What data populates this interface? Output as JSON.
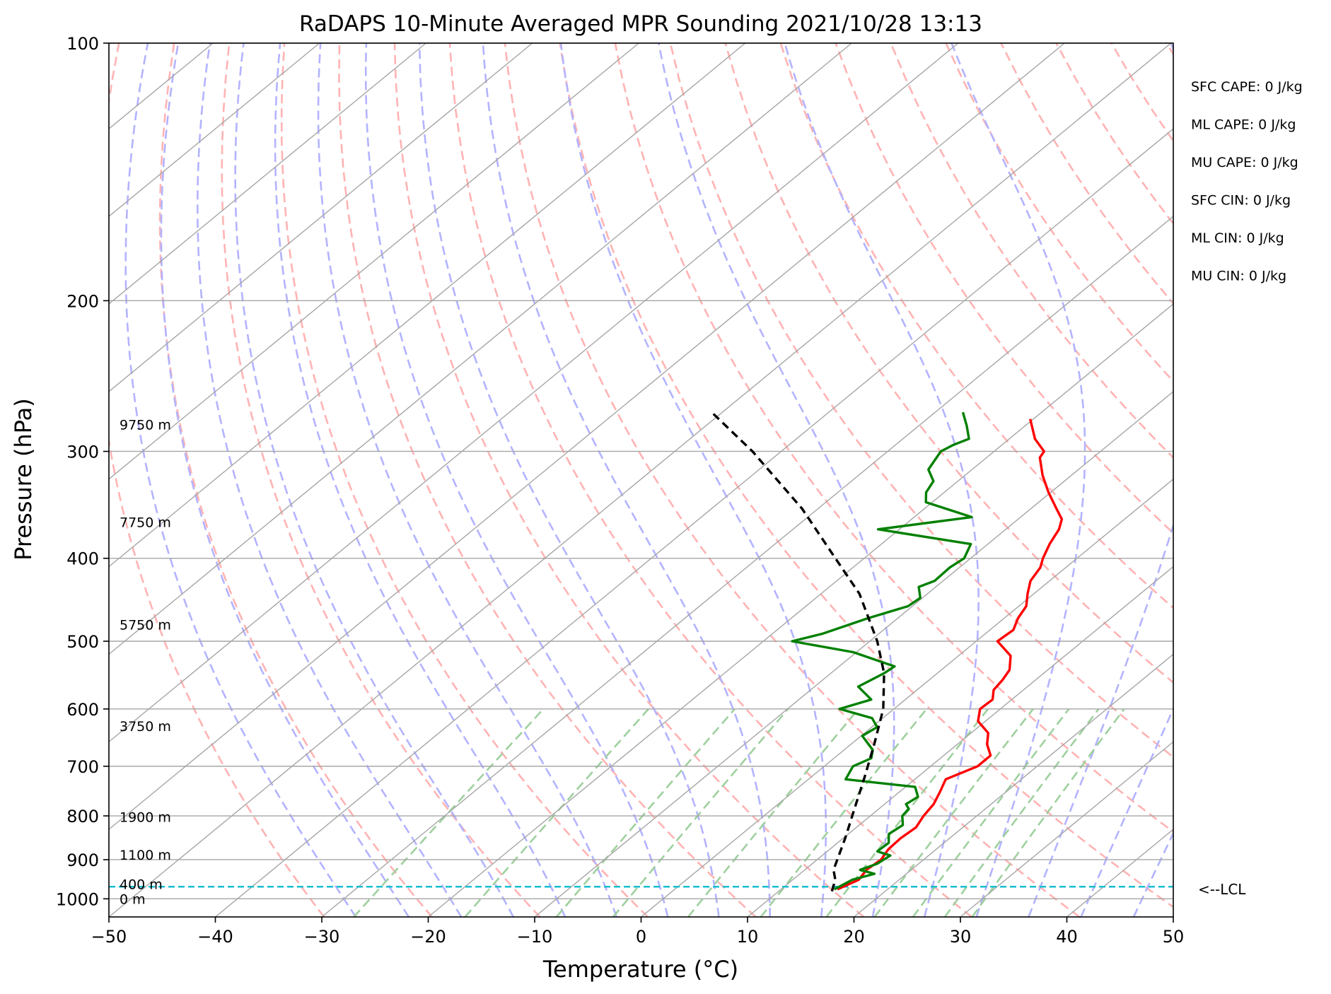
{
  "colors": {
    "temperature": "#ff0000",
    "dewpoint": "#008000",
    "parcel": "#000000",
    "dry_adiabat": "#ffb3b3",
    "moist_adiabat": "#b3b3ff",
    "mixing_ratio": "#9ed09e",
    "isotherm": "#a6a6a6",
    "isobar": "#a6a6a6",
    "lcl_line": "#17becf"
  },
  "chart_data": {
    "type": "line",
    "title": "RaDAPS 10-Minute Averaged MPR Sounding 2021/10/28 13:13",
    "xlabel": "Temperature (°C)",
    "ylabel": "Pressure (hPa)",
    "xlim": [
      -50,
      50
    ],
    "ylim": [
      1050,
      100
    ],
    "y_scale": "log",
    "x_ticks": [
      "−50",
      "−40",
      "−30",
      "−20",
      "−10",
      "0",
      "10",
      "20",
      "30",
      "40",
      "50"
    ],
    "y_ticks": [
      "100",
      "200",
      "300",
      "400",
      "500",
      "600",
      "700",
      "800",
      "900",
      "1000"
    ],
    "grid": true,
    "series": [
      {
        "key": "temperature",
        "points": [
          [
            15.3,
            975
          ],
          [
            16.2,
            950
          ],
          [
            15.8,
            925
          ],
          [
            16.0,
            900
          ],
          [
            15.5,
            875
          ],
          [
            15.4,
            850
          ],
          [
            15.6,
            825
          ],
          [
            15.0,
            800
          ],
          [
            14.6,
            775
          ],
          [
            13.8,
            750
          ],
          [
            12.9,
            725
          ],
          [
            14.4,
            700
          ],
          [
            14.4,
            680
          ],
          [
            12.8,
            660
          ],
          [
            11.6,
            640
          ],
          [
            9.3,
            620
          ],
          [
            8.1,
            600
          ],
          [
            8.2,
            585
          ],
          [
            7.2,
            570
          ],
          [
            6.9,
            555
          ],
          [
            6.4,
            540
          ],
          [
            4.9,
            520
          ],
          [
            2.0,
            500
          ],
          [
            2.2,
            485
          ],
          [
            1.3,
            470
          ],
          [
            0.7,
            455
          ],
          [
            -0.6,
            440
          ],
          [
            -1.8,
            425
          ],
          [
            -2.4,
            410
          ],
          [
            -3.2,
            400
          ],
          [
            -4.2,
            385
          ],
          [
            -5.0,
            370
          ],
          [
            -5.9,
            360
          ],
          [
            -7.6,
            350
          ],
          [
            -10.2,
            335
          ],
          [
            -12.7,
            320
          ],
          [
            -15.0,
            305
          ],
          [
            -15.3,
            300
          ],
          [
            -17.6,
            290
          ],
          [
            -20.3,
            275
          ]
        ]
      },
      {
        "key": "dewpoint",
        "points": [
          [
            15.0,
            975
          ],
          [
            15.6,
            950
          ],
          [
            17.0,
            935
          ],
          [
            15.2,
            925
          ],
          [
            16.1,
            910
          ],
          [
            16.4,
            890
          ],
          [
            14.7,
            880
          ],
          [
            14.8,
            860
          ],
          [
            13.8,
            840
          ],
          [
            14.1,
            820
          ],
          [
            13.0,
            800
          ],
          [
            12.8,
            785
          ],
          [
            12.0,
            775
          ],
          [
            12.3,
            760
          ],
          [
            10.9,
            740
          ],
          [
            3.5,
            725
          ],
          [
            2.7,
            700
          ],
          [
            3.5,
            685
          ],
          [
            2.7,
            670
          ],
          [
            0.1,
            645
          ],
          [
            0.5,
            630
          ],
          [
            -1.0,
            615
          ],
          [
            -5.1,
            600
          ],
          [
            -3.2,
            585
          ],
          [
            -5.9,
            565
          ],
          [
            -5.0,
            545
          ],
          [
            -4.8,
            535
          ],
          [
            -10.3,
            515
          ],
          [
            -17.3,
            500
          ],
          [
            -15.3,
            490
          ],
          [
            -12.8,
            470
          ],
          [
            -10.4,
            455
          ],
          [
            -10.2,
            445
          ],
          [
            -11.6,
            432
          ],
          [
            -10.8,
            425
          ],
          [
            -10.9,
            410
          ],
          [
            -10.6,
            400
          ],
          [
            -11.6,
            385
          ],
          [
            -22.0,
            370
          ],
          [
            -14.6,
            358
          ],
          [
            -20.6,
            344
          ],
          [
            -21.7,
            335
          ],
          [
            -22.3,
            325
          ],
          [
            -24.1,
            315
          ],
          [
            -25.0,
            300
          ],
          [
            -24.6,
            295
          ],
          [
            -23.8,
            290
          ],
          [
            -25.5,
            280
          ],
          [
            -27.4,
            270
          ]
        ]
      },
      {
        "key": "parcel",
        "points": [
          [
            15.0,
            980
          ],
          [
            14.0,
            950
          ],
          [
            12.7,
            925
          ],
          [
            10.2,
            850
          ],
          [
            7.3,
            775
          ],
          [
            5.0,
            720
          ],
          [
            2.2,
            660
          ],
          [
            -1.0,
            600
          ],
          [
            -5.0,
            545
          ],
          [
            -9.3,
            500
          ],
          [
            -16.4,
            440
          ],
          [
            -22.7,
            400
          ],
          [
            -31.5,
            350
          ],
          [
            -42.7,
            300
          ],
          [
            -51.0,
            270
          ]
        ]
      }
    ],
    "lcl_pressure": 968,
    "lcl_label": "<--LCL",
    "height_labels": [
      {
        "text": "9750 m",
        "pressure": 279
      },
      {
        "text": "7750 m",
        "pressure": 363
      },
      {
        "text": "5750 m",
        "pressure": 478
      },
      {
        "text": "3750 m",
        "pressure": 628
      },
      {
        "text": "1900 m",
        "pressure": 802
      },
      {
        "text": "1100 m",
        "pressure": 888
      },
      {
        "text": "400 m",
        "pressure": 961
      },
      {
        "text": "0 m",
        "pressure": 1000
      }
    ],
    "indices": [
      {
        "text": "SFC CAPE: 0 J/kg"
      },
      {
        "text": "ML CAPE: 0 J/kg"
      },
      {
        "text": "MU CAPE: 0 J/kg"
      },
      {
        "text": "SFC CIN: 0 J/kg"
      },
      {
        "text": "ML CIN: 0 J/kg"
      },
      {
        "text": "MU CIN: 0 J/kg"
      }
    ]
  }
}
